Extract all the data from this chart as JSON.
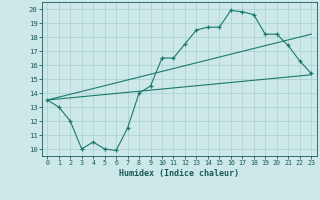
{
  "xlabel": "Humidex (Indice chaleur)",
  "bg_color": "#cce8e8",
  "line_color": "#1a7a6a",
  "grid_color": "#aacfcf",
  "font_color": "#1a5a5a",
  "xlim": [
    -0.5,
    23.5
  ],
  "ylim": [
    9.5,
    20.5
  ],
  "xticks": [
    0,
    1,
    2,
    3,
    4,
    5,
    6,
    7,
    8,
    9,
    10,
    11,
    12,
    13,
    14,
    15,
    16,
    17,
    18,
    19,
    20,
    21,
    22,
    23
  ],
  "yticks": [
    10,
    11,
    12,
    13,
    14,
    15,
    16,
    17,
    18,
    19,
    20
  ],
  "line1_x": [
    0,
    1,
    2,
    3,
    4,
    5,
    6,
    7,
    8,
    9,
    10,
    11,
    12,
    13,
    14,
    15,
    16,
    17,
    18,
    19,
    20,
    21,
    22,
    23
  ],
  "line1_y": [
    13.5,
    13.0,
    12.0,
    10.0,
    10.5,
    10.0,
    9.9,
    11.5,
    14.0,
    14.5,
    16.5,
    16.5,
    17.5,
    18.5,
    18.7,
    18.7,
    19.9,
    19.8,
    19.6,
    18.2,
    18.2,
    17.4,
    16.3,
    15.4
  ],
  "line2_x": [
    0,
    23
  ],
  "line2_y": [
    13.5,
    15.3
  ],
  "line3_x": [
    0,
    23
  ],
  "line3_y": [
    13.5,
    18.2
  ]
}
